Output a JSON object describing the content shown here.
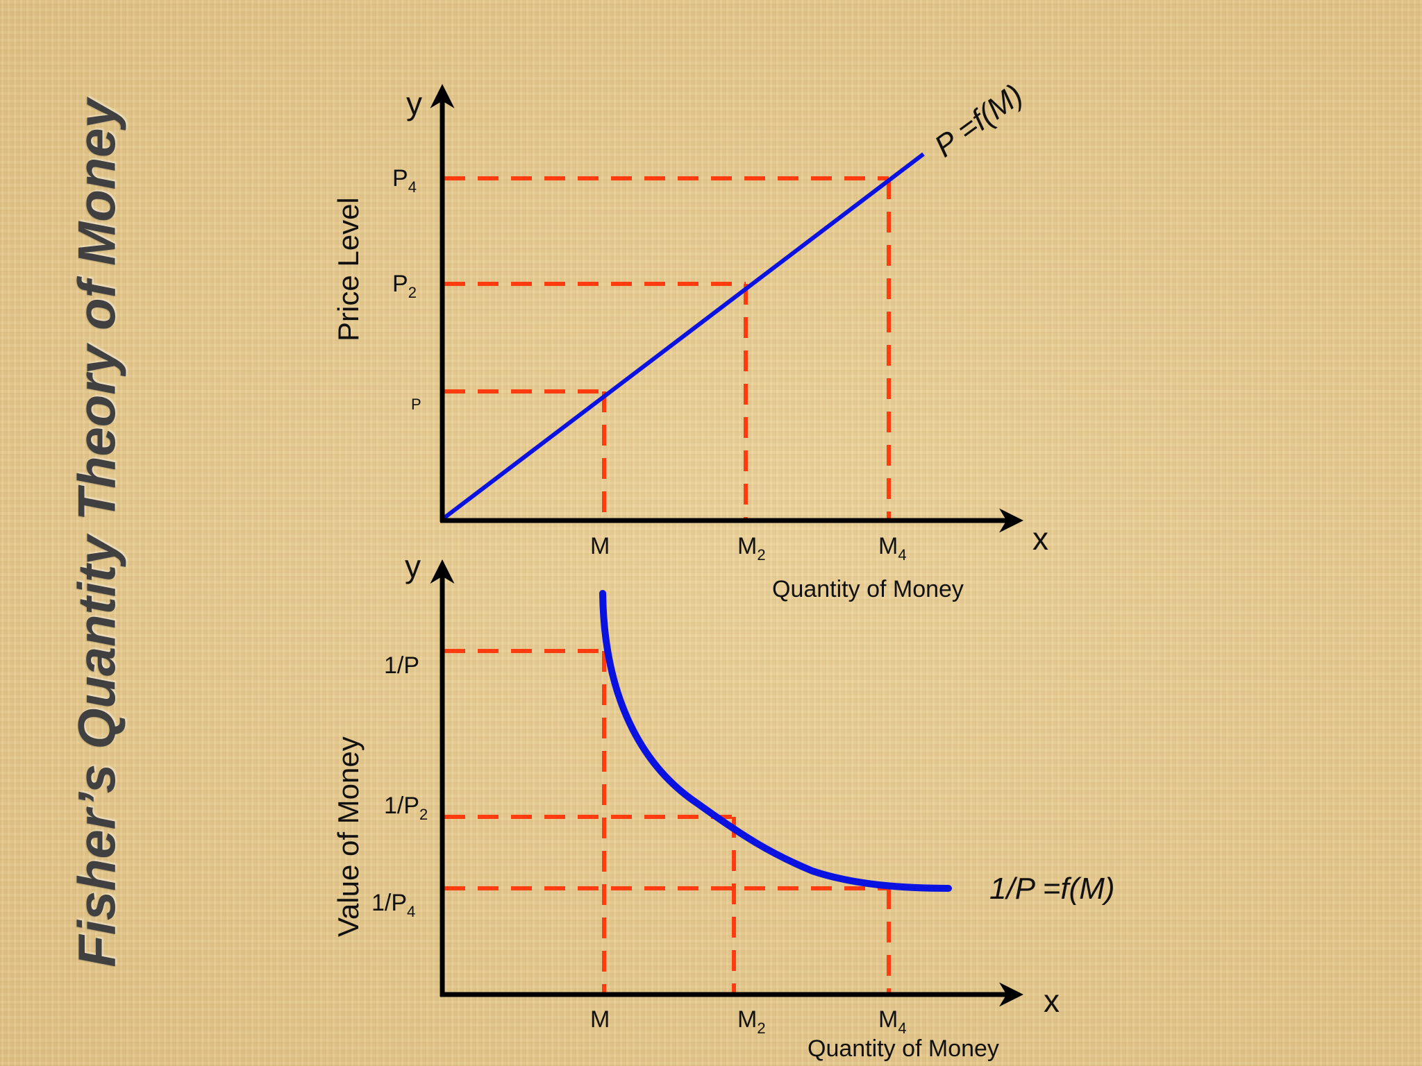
{
  "title": "Fisher’s Quantity Theory of Money",
  "colors": {
    "curve": "#0a12e0",
    "guide": "#ff3b10",
    "axis": "#000000"
  },
  "top_chart": {
    "y_axis_letter": "y",
    "x_axis_letter": "x",
    "y_axis_title": "Price Level",
    "x_axis_title": "Quantity of Money",
    "function_label": "P =f(M)",
    "y_ticks": [
      {
        "base": "P4",
        "main": "P",
        "sub": "4"
      },
      {
        "base": "P2",
        "main": "P",
        "sub": "2"
      },
      {
        "base": "P",
        "main": "P",
        "sub": ""
      }
    ],
    "x_ticks": [
      {
        "main": "M",
        "sub": ""
      },
      {
        "main": "M",
        "sub": "2"
      },
      {
        "main": "M",
        "sub": "4"
      }
    ]
  },
  "bottom_chart": {
    "y_axis_letter": "y",
    "x_axis_letter": "x",
    "y_axis_title": "Value of Money",
    "x_axis_title": "Quantity of Money",
    "function_label": "1/P =f(M)",
    "y_ticks": [
      {
        "main": "1/P",
        "sub": ""
      },
      {
        "main": "1/P",
        "sub": "2"
      },
      {
        "main": "1/P",
        "sub": "4"
      }
    ],
    "x_ticks": [
      {
        "main": "M",
        "sub": ""
      },
      {
        "main": "M",
        "sub": "2"
      },
      {
        "main": "M",
        "sub": "4"
      }
    ]
  }
}
